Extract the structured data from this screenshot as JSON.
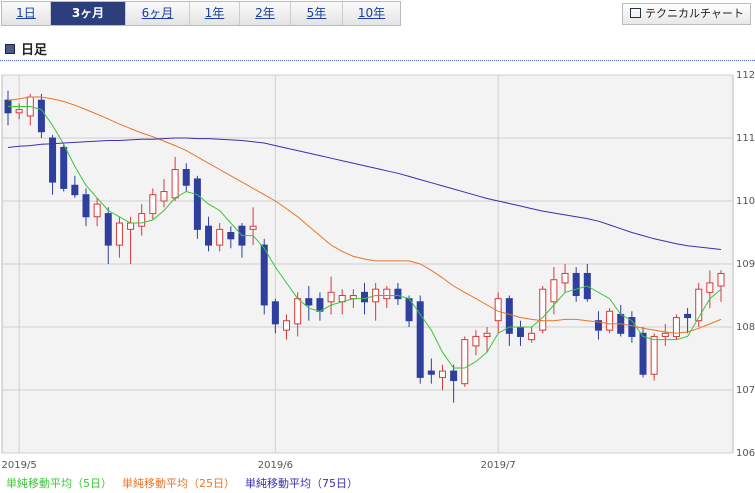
{
  "tabs": [
    "1日",
    "3ヶ月",
    "6ヶ月",
    "1年",
    "2年",
    "5年",
    "10年"
  ],
  "button": "テクニカルチャート",
  "section_title": "日足",
  "chart_data": {
    "type": "candlestick",
    "categories": [
      null,
      "2019/5",
      null,
      null,
      null,
      null,
      null,
      null,
      null,
      null,
      null,
      null,
      null,
      null,
      null,
      null,
      null,
      null,
      null,
      null,
      null,
      null,
      null,
      null,
      "2019/6",
      null,
      null,
      null,
      null,
      null,
      null,
      null,
      null,
      null,
      null,
      null,
      null,
      null,
      null,
      null,
      null,
      null,
      null,
      null,
      "2019/7",
      null,
      null,
      null,
      null,
      null,
      null,
      null,
      null,
      null,
      null,
      null,
      null,
      null,
      null,
      null,
      null,
      null,
      null,
      null,
      null
    ],
    "open": [
      111.6,
      111.4,
      111.35,
      111.6,
      111.0,
      110.85,
      110.25,
      110.1,
      109.75,
      109.8,
      109.3,
      109.55,
      109.6,
      109.8,
      110.0,
      110.05,
      110.5,
      110.35,
      109.6,
      109.3,
      109.5,
      109.6,
      109.55,
      109.3,
      108.4,
      107.95,
      108.05,
      108.45,
      108.45,
      108.4,
      108.4,
      108.45,
      108.55,
      108.4,
      108.45,
      108.6,
      108.45,
      108.4,
      107.3,
      107.2,
      107.3,
      107.1,
      107.7,
      107.85,
      108.1,
      108.45,
      108.0,
      107.8,
      107.95,
      108.4,
      108.7,
      108.85,
      108.85,
      108.1,
      107.95,
      108.2,
      108.15,
      107.9,
      107.25,
      107.85,
      107.85,
      108.2,
      108.1,
      108.55,
      108.65
    ],
    "high": [
      111.75,
      111.55,
      111.7,
      111.7,
      111.05,
      110.9,
      110.4,
      110.2,
      110.05,
      109.9,
      109.75,
      109.75,
      109.95,
      110.2,
      110.35,
      110.7,
      110.6,
      110.4,
      109.75,
      109.65,
      109.6,
      109.65,
      109.9,
      109.4,
      108.45,
      108.2,
      108.55,
      108.65,
      108.55,
      108.8,
      108.6,
      108.6,
      108.7,
      108.7,
      108.65,
      108.7,
      108.5,
      108.5,
      107.5,
      107.4,
      107.4,
      107.85,
      107.95,
      108.0,
      108.55,
      108.5,
      108.1,
      108.0,
      108.65,
      108.95,
      109.0,
      108.95,
      109.0,
      108.25,
      108.3,
      108.35,
      108.25,
      108.0,
      107.9,
      108.05,
      108.2,
      108.3,
      108.7,
      108.9,
      108.9
    ],
    "low": [
      111.2,
      111.3,
      111.2,
      111.0,
      110.1,
      110.15,
      110.05,
      109.6,
      109.6,
      109.0,
      109.1,
      109.0,
      109.45,
      109.7,
      109.9,
      110.0,
      110.15,
      109.4,
      109.2,
      109.2,
      109.25,
      109.1,
      109.3,
      108.2,
      107.9,
      107.8,
      107.85,
      108.1,
      108.1,
      108.2,
      108.2,
      108.3,
      108.2,
      108.1,
      108.3,
      108.35,
      108.0,
      107.1,
      107.1,
      107.0,
      106.8,
      107.05,
      107.55,
      107.6,
      107.9,
      107.7,
      107.7,
      107.75,
      107.9,
      108.2,
      108.55,
      108.4,
      108.4,
      107.8,
      107.9,
      107.85,
      107.75,
      107.2,
      107.15,
      107.7,
      107.8,
      107.9,
      108.0,
      108.3,
      108.4
    ],
    "close": [
      111.4,
      111.45,
      111.65,
      111.1,
      110.3,
      110.2,
      110.1,
      109.75,
      109.95,
      109.3,
      109.65,
      109.65,
      109.8,
      110.1,
      110.15,
      110.5,
      110.25,
      109.55,
      109.3,
      109.55,
      109.4,
      109.3,
      109.6,
      108.35,
      108.05,
      108.1,
      108.45,
      108.35,
      108.25,
      108.55,
      108.5,
      108.5,
      108.4,
      108.6,
      108.6,
      108.45,
      108.1,
      107.2,
      107.25,
      107.3,
      107.15,
      107.8,
      107.85,
      107.9,
      108.45,
      107.9,
      107.85,
      107.9,
      108.6,
      108.75,
      108.85,
      108.5,
      108.45,
      107.95,
      108.25,
      107.9,
      107.85,
      107.25,
      107.85,
      107.9,
      108.15,
      108.15,
      108.6,
      108.7,
      108.85
    ],
    "up_color": "#d9393b",
    "down_color": "#2f3f9e",
    "series": [
      {
        "name": "単純移動平均（5日）",
        "color": "#3cc43c",
        "values": [
          111.5,
          111.5,
          111.5,
          111.45,
          111.2,
          110.9,
          110.55,
          110.25,
          110.05,
          109.85,
          109.75,
          109.65,
          109.65,
          109.7,
          109.85,
          110.05,
          110.15,
          110.1,
          109.95,
          109.85,
          109.65,
          109.45,
          109.45,
          109.25,
          108.95,
          108.7,
          108.45,
          108.3,
          108.25,
          108.35,
          108.4,
          108.45,
          108.45,
          108.5,
          108.5,
          108.5,
          108.45,
          108.2,
          107.95,
          107.6,
          107.35,
          107.35,
          107.45,
          107.6,
          107.9,
          108.0,
          108.0,
          108.0,
          108.15,
          108.35,
          108.55,
          108.6,
          108.65,
          108.55,
          108.45,
          108.2,
          108.1,
          107.85,
          107.8,
          107.8,
          107.8,
          107.85,
          108.15,
          108.45,
          108.6
        ]
      },
      {
        "name": "単純移動平均（25日）",
        "color": "#e8742a",
        "values": [
          111.6,
          111.62,
          111.65,
          111.65,
          111.62,
          111.58,
          111.52,
          111.45,
          111.38,
          111.3,
          111.22,
          111.15,
          111.08,
          111.02,
          110.95,
          110.88,
          110.8,
          110.7,
          110.6,
          110.5,
          110.4,
          110.3,
          110.2,
          110.1,
          110.0,
          109.88,
          109.75,
          109.6,
          109.45,
          109.3,
          109.2,
          109.12,
          109.08,
          109.05,
          109.05,
          109.05,
          109.05,
          109.0,
          108.9,
          108.78,
          108.65,
          108.55,
          108.45,
          108.35,
          108.25,
          108.2,
          108.15,
          108.12,
          108.1,
          108.1,
          108.12,
          108.12,
          108.1,
          108.08,
          108.05,
          108.05,
          108.02,
          107.98,
          107.95,
          107.92,
          107.9,
          107.92,
          107.98,
          108.05,
          108.12
        ]
      },
      {
        "name": "単純移動平均（75日）",
        "color": "#3a2fb0",
        "values": [
          110.85,
          110.87,
          110.88,
          110.9,
          110.91,
          110.92,
          110.93,
          110.94,
          110.95,
          110.96,
          110.96,
          110.97,
          110.98,
          110.98,
          110.99,
          111.0,
          111.0,
          110.99,
          110.99,
          110.98,
          110.97,
          110.96,
          110.94,
          110.92,
          110.88,
          110.84,
          110.8,
          110.76,
          110.72,
          110.68,
          110.64,
          110.6,
          110.56,
          110.52,
          110.48,
          110.44,
          110.39,
          110.34,
          110.29,
          110.24,
          110.19,
          110.14,
          110.09,
          110.04,
          110.0,
          109.96,
          109.92,
          109.88,
          109.84,
          109.81,
          109.78,
          109.75,
          109.72,
          109.68,
          109.62,
          109.56,
          109.5,
          109.45,
          109.4,
          109.36,
          109.32,
          109.29,
          109.27,
          109.25,
          109.23
        ]
      }
    ],
    "ylim": [
      106,
      112
    ],
    "yticks": [
      106,
      107,
      108,
      109,
      110,
      111,
      112
    ],
    "grid": true
  }
}
